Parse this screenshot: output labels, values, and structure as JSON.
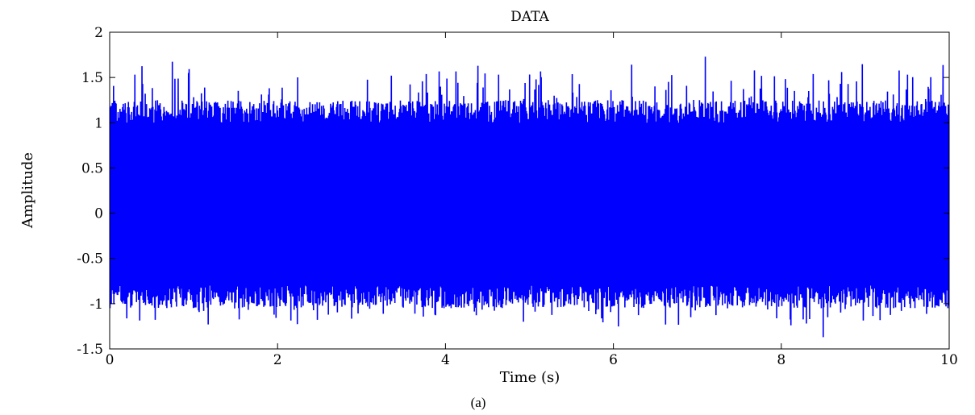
{
  "chart_data": {
    "type": "line",
    "title": "DATA",
    "xlabel": "Time (s)",
    "ylabel": "Amplitude",
    "xlim": [
      0,
      10
    ],
    "ylim": [
      -1.5,
      2
    ],
    "x_ticks": [
      0,
      2,
      4,
      6,
      8,
      10
    ],
    "x_tick_labels": [
      "0",
      "2",
      "4",
      "6",
      "8",
      "10"
    ],
    "y_ticks": [
      -1.5,
      -1,
      -0.5,
      0,
      0.5,
      1,
      1.5,
      2
    ],
    "y_tick_labels": [
      "-1.5",
      "-1",
      "-0.5",
      "0",
      "0.5",
      "1",
      "1.5",
      "2"
    ],
    "grid": false,
    "line_color": "#0000ff",
    "series": [
      {
        "values_summary": {
          "typical_max": 1.1,
          "typical_min": -0.9,
          "peak_max": 1.73,
          "peak_min": -1.37,
          "peak_max_at": 7.1,
          "peak_min_at": 8.5
        }
      }
    ]
  },
  "caption": "(a)"
}
